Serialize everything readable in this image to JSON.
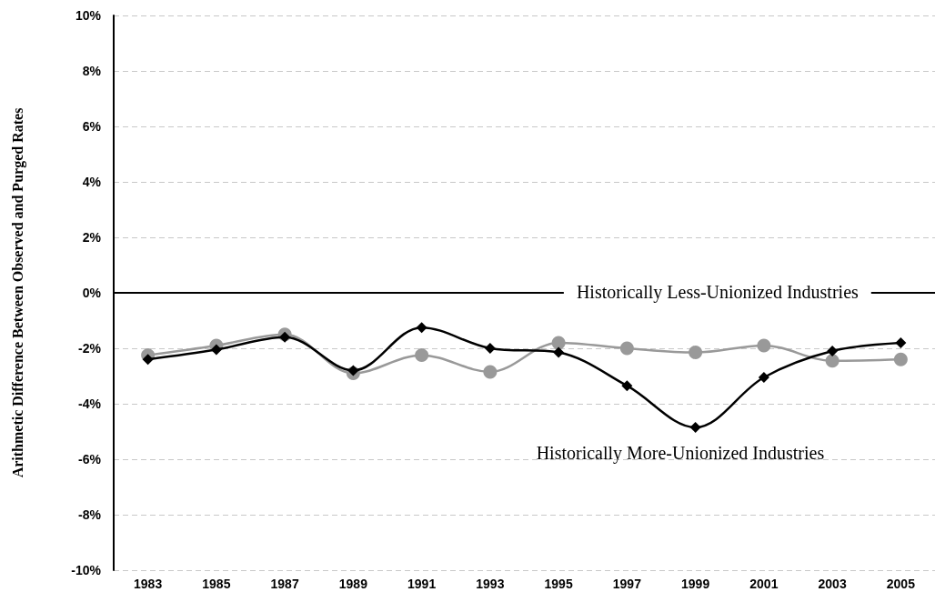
{
  "chart_data": {
    "type": "line",
    "ylabel": "Arithmetic Difference Between Observed and Purged Rates",
    "categories": [
      "1983",
      "1985",
      "1987",
      "1989",
      "1991",
      "1993",
      "1995",
      "1997",
      "1999",
      "2001",
      "2003",
      "2005"
    ],
    "series": [
      {
        "name": "Historically Less-Unionized Industries",
        "color": "#999999",
        "marker": "circle",
        "values": [
          -2.25,
          -1.9,
          -1.5,
          -2.9,
          -2.25,
          -2.85,
          -1.8,
          -2.0,
          -2.15,
          -1.9,
          -2.45,
          -2.4
        ]
      },
      {
        "name": "Historically More-Unionized Industries",
        "color": "#000000",
        "marker": "diamond",
        "values": [
          -2.4,
          -2.05,
          -1.6,
          -2.8,
          -1.25,
          -2.0,
          -2.15,
          -3.35,
          -4.85,
          -3.05,
          -2.1,
          -1.8
        ]
      }
    ],
    "ylim": [
      -10,
      10
    ],
    "yticks": [
      {
        "value": -10,
        "label": "-10%"
      },
      {
        "value": -8,
        "label": "-8%"
      },
      {
        "value": -6,
        "label": "-6%"
      },
      {
        "value": -4,
        "label": "-4%"
      },
      {
        "value": -2,
        "label": "-2%"
      },
      {
        "value": 0,
        "label": "0%"
      },
      {
        "value": 2,
        "label": "2%"
      },
      {
        "value": 4,
        "label": "4%"
      },
      {
        "value": 6,
        "label": "6%"
      },
      {
        "value": 8,
        "label": "8%"
      },
      {
        "value": 10,
        "label": "10%"
      }
    ],
    "ref_lines": [
      {
        "axis": "y",
        "value": 0,
        "color": "#000000"
      }
    ],
    "grid": "y",
    "legend": false,
    "line_style": "solid"
  }
}
